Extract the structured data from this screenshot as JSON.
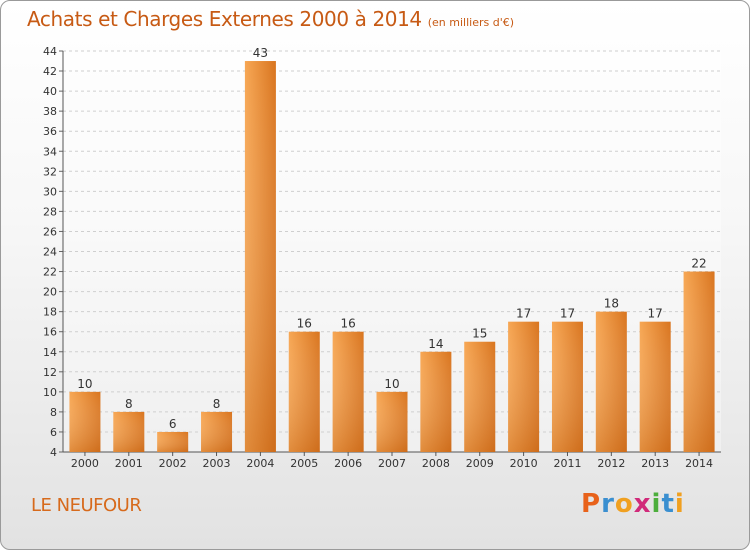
{
  "header": {
    "title": "Achats et Charges Externes 2000 à 2014",
    "unit": "(en milliers d'€)"
  },
  "footer": {
    "city": "LE NEUFOUR",
    "brand_letters": [
      "P",
      "r",
      "o",
      "x",
      "i",
      "t",
      "i"
    ],
    "brand_colors": [
      "#e8621a",
      "#3a8fd0",
      "#f0a020",
      "#d12a7a",
      "#4cae3c",
      "#3a8fd0",
      "#f0a020"
    ]
  },
  "colors": {
    "bar_light": "#f7a754",
    "bar_dark": "#d9751f",
    "title": "#c75a14"
  },
  "chart_data": {
    "type": "bar",
    "title": "Achats et Charges Externes 2000 à 2014",
    "categories": [
      "2000",
      "2001",
      "2002",
      "2003",
      "2004",
      "2005",
      "2006",
      "2007",
      "2008",
      "2009",
      "2010",
      "2011",
      "2012",
      "2013",
      "2014"
    ],
    "values": [
      10,
      8,
      6,
      8,
      43,
      16,
      16,
      10,
      14,
      15,
      17,
      17,
      18,
      17,
      22
    ],
    "ylim": [
      4,
      44
    ],
    "yticks": [
      4,
      6,
      8,
      10,
      12,
      14,
      16,
      18,
      20,
      22,
      24,
      26,
      28,
      30,
      32,
      34,
      36,
      38,
      40,
      42,
      44
    ],
    "grid": true,
    "xlabel": "",
    "ylabel": ""
  }
}
